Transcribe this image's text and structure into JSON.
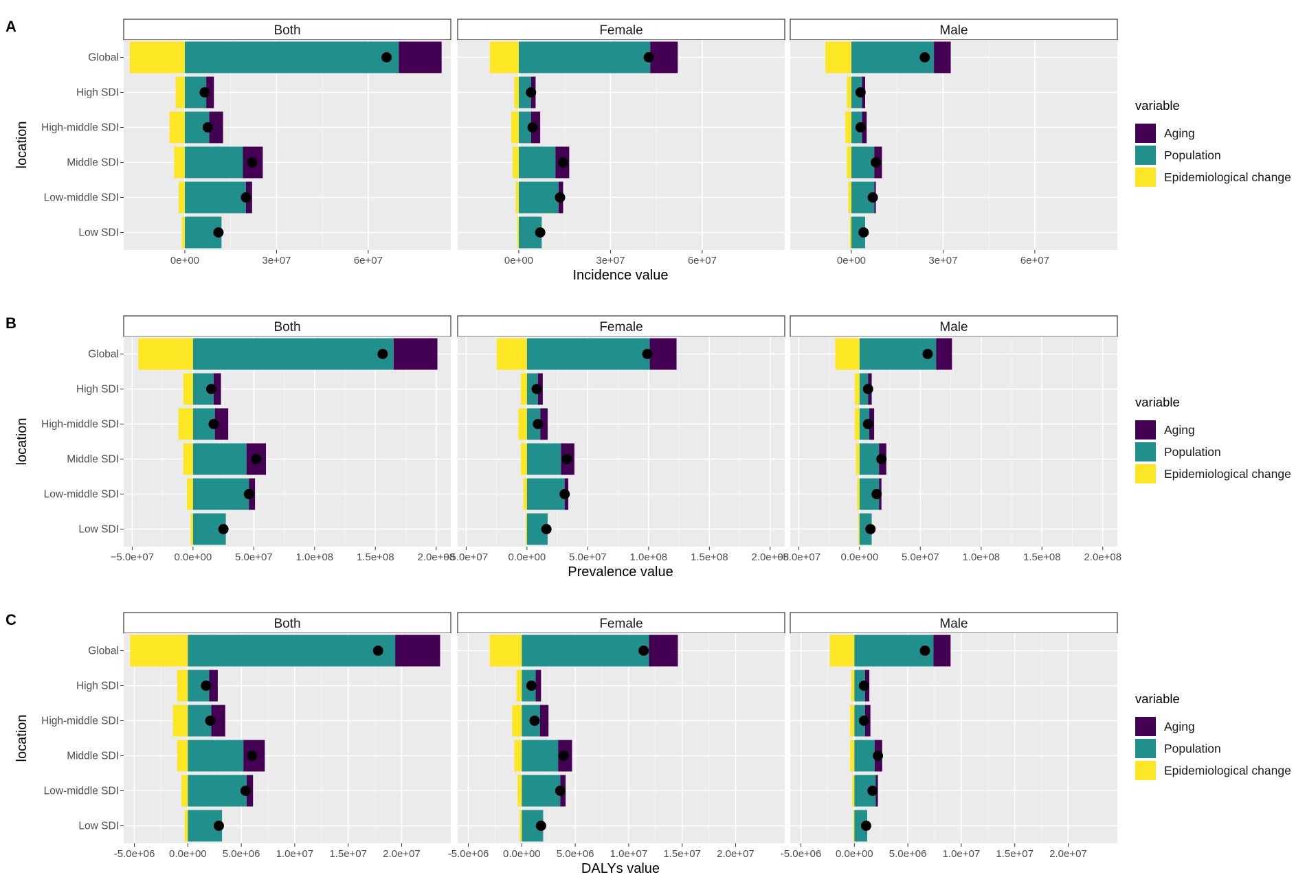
{
  "colors": {
    "aging": "#440154",
    "population": "#21908C",
    "epidemiological_change": "#FDE725",
    "point": "#000000",
    "panel_bg": "#EBEBEB",
    "grid_major": "#FFFFFF",
    "strip_bg": "#FFFFFF"
  },
  "legend": {
    "title": "variable",
    "items": [
      {
        "key": "aging",
        "label": "Aging"
      },
      {
        "key": "population",
        "label": "Population"
      },
      {
        "key": "epidemiological_change",
        "label": "Epidemiological change"
      }
    ]
  },
  "chart_data": [
    {
      "type": "bar",
      "tag": "A",
      "xlabel": "Incidence value",
      "ylabel": "location",
      "facets": [
        "Both",
        "Female",
        "Male"
      ],
      "categories": [
        "Global",
        "High SDI",
        "High-middle SDI",
        "Middle SDI",
        "Low-middle SDI",
        "Low SDI"
      ],
      "xlim": [
        -20000000,
        87000000
      ],
      "xticks": [
        0,
        30000000,
        60000000
      ],
      "xtick_labels": [
        "0e+00",
        "3e+07",
        "6e+07"
      ],
      "panels": [
        {
          "facet": "Both",
          "epi": [
            -18000000,
            -3000000,
            -5000000,
            -3500000,
            -2000000,
            -1000000
          ],
          "population": [
            70000000,
            7000000,
            8000000,
            19000000,
            20000000,
            12000000
          ],
          "aging": [
            14000000,
            2500000,
            4500000,
            6500000,
            2000000,
            0
          ],
          "total": [
            66000000,
            6500000,
            7500000,
            22000000,
            20000000,
            11000000
          ]
        },
        {
          "facet": "Female",
          "epi": [
            -9500000,
            -1500000,
            -2500000,
            -2000000,
            -1000000,
            -500000
          ],
          "population": [
            43000000,
            4000000,
            4000000,
            12000000,
            13000000,
            7500000
          ],
          "aging": [
            9000000,
            1500000,
            3000000,
            4500000,
            1500000,
            0
          ],
          "total": [
            42500000,
            4000000,
            4500000,
            14500000,
            13500000,
            7000000
          ]
        },
        {
          "facet": "Male",
          "epi": [
            -8500000,
            -1500000,
            -2000000,
            -1500000,
            -1000000,
            -500000
          ],
          "population": [
            27000000,
            3500000,
            3500000,
            7500000,
            7500000,
            4500000
          ],
          "aging": [
            5500000,
            1000000,
            1500000,
            2500000,
            500000,
            0
          ],
          "total": [
            24000000,
            3000000,
            3000000,
            8000000,
            7000000,
            4000000
          ]
        }
      ]
    },
    {
      "type": "bar",
      "tag": "B",
      "xlabel": "Prevalence value",
      "ylabel": "location",
      "facets": [
        "Both",
        "Female",
        "Male"
      ],
      "categories": [
        "Global",
        "High SDI",
        "High-middle SDI",
        "Middle SDI",
        "Low-middle SDI",
        "Low SDI"
      ],
      "xlim": [
        -57000000,
        212000000
      ],
      "xticks": [
        -50000000,
        0,
        50000000,
        100000000,
        150000000,
        200000000
      ],
      "xtick_labels": [
        "−5.0e+07",
        "0.0e+00",
        "5.0e+07",
        "1.0e+08",
        "1.5e+08",
        "2.0e+08"
      ],
      "panels": [
        {
          "facet": "Both",
          "epi": [
            -45000000,
            -8000000,
            -12000000,
            -8000000,
            -5000000,
            -2000000
          ],
          "population": [
            165000000,
            17000000,
            18000000,
            44000000,
            46000000,
            27000000
          ],
          "aging": [
            36000000,
            6000000,
            11000000,
            16000000,
            5000000,
            0
          ],
          "total": [
            156000000,
            15000000,
            17000000,
            52000000,
            46000000,
            25000000
          ]
        },
        {
          "facet": "Female",
          "epi": [
            -25000000,
            -5000000,
            -7000000,
            -5000000,
            -3000000,
            -1000000
          ],
          "population": [
            101000000,
            9000000,
            11000000,
            28000000,
            31000000,
            17000000
          ],
          "aging": [
            22000000,
            4000000,
            6000000,
            11000000,
            3000000,
            0
          ],
          "total": [
            99000000,
            8000000,
            9000000,
            33000000,
            31000000,
            16000000
          ]
        },
        {
          "facet": "Male",
          "epi": [
            -20000000,
            -4000000,
            -4000000,
            -3000000,
            -2000000,
            -1000000
          ],
          "population": [
            63000000,
            7000000,
            8000000,
            16000000,
            16000000,
            10000000
          ],
          "aging": [
            13000000,
            3000000,
            4000000,
            6000000,
            2000000,
            0
          ],
          "total": [
            56000000,
            7000000,
            7000000,
            18000000,
            14000000,
            9000000
          ]
        }
      ]
    },
    {
      "type": "bar",
      "tag": "C",
      "xlabel": "DALYs value",
      "ylabel": "location",
      "facets": [
        "Both",
        "Female",
        "Male"
      ],
      "categories": [
        "Global",
        "High SDI",
        "High-middle SDI",
        "Middle SDI",
        "Low-middle SDI",
        "Low SDI"
      ],
      "xlim": [
        -6000000,
        24600000
      ],
      "xticks": [
        -5000000,
        0,
        5000000,
        10000000,
        15000000,
        20000000
      ],
      "xtick_labels": [
        "-5.0e+06",
        "0.0e+00",
        "5.0e+06",
        "1.0e+07",
        "1.5e+07",
        "2.0e+07"
      ],
      "panels": [
        {
          "facet": "Both",
          "epi": [
            -5400000,
            -1000000,
            -1400000,
            -1000000,
            -600000,
            -300000
          ],
          "population": [
            19400000,
            2000000,
            2200000,
            5200000,
            5500000,
            3200000
          ],
          "aging": [
            4200000,
            800000,
            1300000,
            2000000,
            600000,
            0
          ],
          "total": [
            17800000,
            1700000,
            2100000,
            6000000,
            5400000,
            2900000
          ]
        },
        {
          "facet": "Female",
          "epi": [
            -3000000,
            -500000,
            -900000,
            -700000,
            -400000,
            -200000
          ],
          "population": [
            11900000,
            1300000,
            1700000,
            3400000,
            3600000,
            2000000
          ],
          "aging": [
            2700000,
            500000,
            800000,
            1300000,
            500000,
            0
          ],
          "total": [
            11400000,
            900000,
            1200000,
            3900000,
            3600000,
            1800000
          ]
        },
        {
          "facet": "Male",
          "epi": [
            -2300000,
            -300000,
            -400000,
            -400000,
            -200000,
            -100000
          ],
          "population": [
            7400000,
            1000000,
            1000000,
            1900000,
            2000000,
            1200000
          ],
          "aging": [
            1600000,
            400000,
            500000,
            700000,
            200000,
            0
          ],
          "total": [
            6600000,
            900000,
            900000,
            2200000,
            1700000,
            1100000
          ]
        }
      ]
    }
  ]
}
